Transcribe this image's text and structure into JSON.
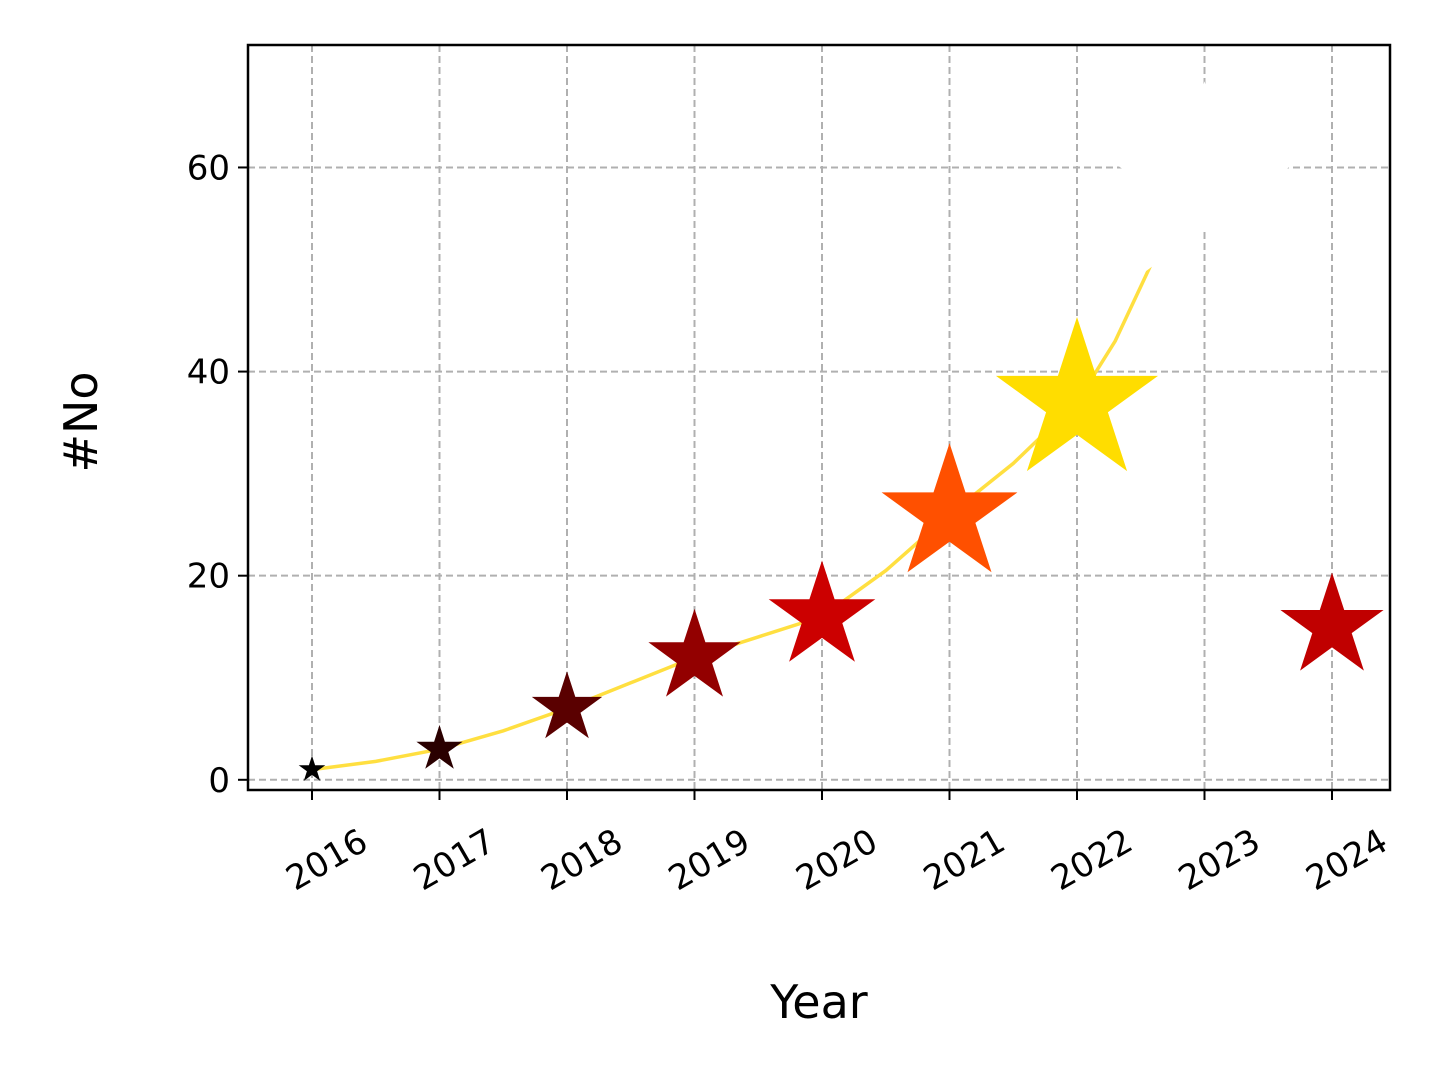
{
  "chart_data": {
    "type": "scatter",
    "xlabel": "Year",
    "ylabel": "#No",
    "categories": [
      "2016",
      "2017",
      "2018",
      "2019",
      "2020",
      "2021",
      "2022",
      "2023",
      "2024"
    ],
    "yticks": [
      "0",
      "20",
      "40",
      "60"
    ],
    "ylim": [
      -1,
      72
    ],
    "grid": true,
    "series": [
      {
        "marker": "star",
        "points": [
          {
            "x": "2016",
            "y": 1,
            "color": "#000000"
          },
          {
            "x": "2017",
            "y": 3,
            "color": "#2a0000"
          },
          {
            "x": "2018",
            "y": 7,
            "color": "#5a0000"
          },
          {
            "x": "2019",
            "y": 12,
            "color": "#930000"
          },
          {
            "x": "2020",
            "y": 16,
            "color": "#cc0000"
          },
          {
            "x": "2021",
            "y": 26,
            "color": "#ff5000"
          },
          {
            "x": "2022",
            "y": 37,
            "color": "#ffdd00"
          },
          {
            "x": "2023",
            "y": 58,
            "color": "#ffffff"
          },
          {
            "x": "2024",
            "y": 15,
            "color": "#c00000"
          }
        ]
      }
    ],
    "trend_line": {
      "color": "#ffdf40",
      "points": [
        {
          "x": 2016,
          "y": 1
        },
        {
          "x": 2016.5,
          "y": 1.8
        },
        {
          "x": 2017,
          "y": 3
        },
        {
          "x": 2017.5,
          "y": 4.8
        },
        {
          "x": 2018,
          "y": 7
        },
        {
          "x": 2018.5,
          "y": 9.5
        },
        {
          "x": 2019,
          "y": 12
        },
        {
          "x": 2019.5,
          "y": 14
        },
        {
          "x": 2020,
          "y": 16
        },
        {
          "x": 2020.5,
          "y": 20.5
        },
        {
          "x": 2021,
          "y": 26
        },
        {
          "x": 2021.5,
          "y": 31
        },
        {
          "x": 2022,
          "y": 37
        },
        {
          "x": 2022.3,
          "y": 43
        },
        {
          "x": 2022.6,
          "y": 51
        }
      ]
    }
  }
}
